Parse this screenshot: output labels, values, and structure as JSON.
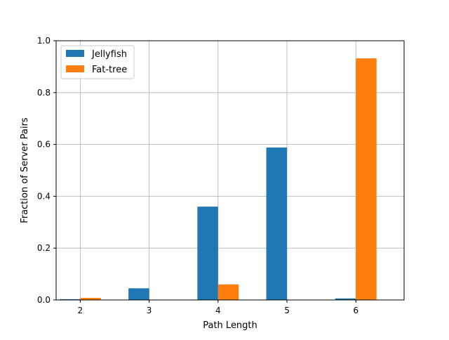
{
  "chart_data": {
    "type": "bar",
    "xlabel": "Path Length",
    "ylabel": "Fraction of Server Pairs",
    "categories": [
      "2",
      "3",
      "4",
      "5",
      "6"
    ],
    "x": [
      2,
      3,
      4,
      5,
      6
    ],
    "xlim": [
      1.65,
      6.7
    ],
    "ylim": [
      0,
      1.0
    ],
    "yticks": [
      0.0,
      0.2,
      0.4,
      0.6,
      0.8,
      1.0
    ],
    "ytick_labels": [
      "0.0",
      "0.2",
      "0.4",
      "0.6",
      "0.8",
      "1.0"
    ],
    "grid": true,
    "legend_position": "top-left",
    "series": [
      {
        "name": "Jellyfish",
        "color": "#1f77b4",
        "values": [
          0.003,
          0.045,
          0.36,
          0.588,
          0.006
        ]
      },
      {
        "name": "Fat-tree",
        "color": "#ff7f0e",
        "values": [
          0.008,
          0.0,
          0.06,
          0.0,
          0.932
        ]
      }
    ]
  }
}
